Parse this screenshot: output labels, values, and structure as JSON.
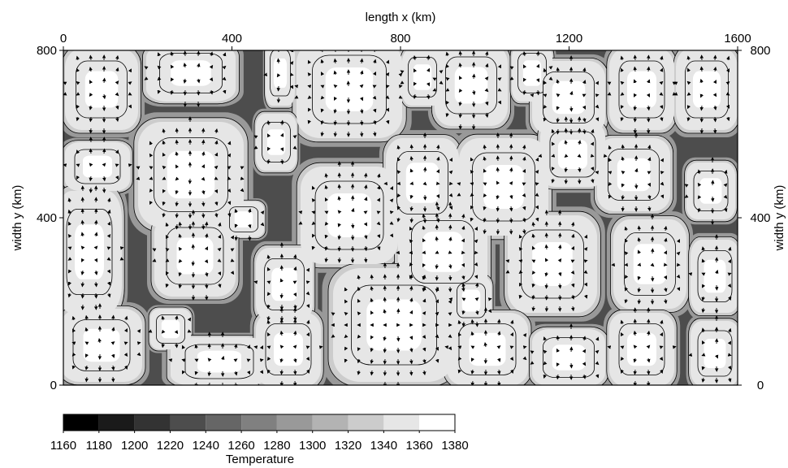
{
  "chart_data": {
    "type": "contour",
    "x_label": "length x (km)",
    "y_label": "width y (km)",
    "xlim": [
      0,
      1600
    ],
    "ylim": [
      0,
      800
    ],
    "xticks": [
      0,
      400,
      800,
      1200,
      1600
    ],
    "yticks": [
      0,
      400,
      800
    ],
    "colorbar": {
      "label": "Temperature",
      "levels": [
        1160,
        1180,
        1200,
        1220,
        1240,
        1260,
        1280,
        1300,
        1320,
        1340,
        1360,
        1380
      ],
      "colors": [
        "#000000",
        "#1a1a1a",
        "#333333",
        "#4d4d4d",
        "#666666",
        "#808080",
        "#999999",
        "#b3b3b3",
        "#cccccc",
        "#e6e6e6",
        "#ffffff"
      ]
    }
  }
}
